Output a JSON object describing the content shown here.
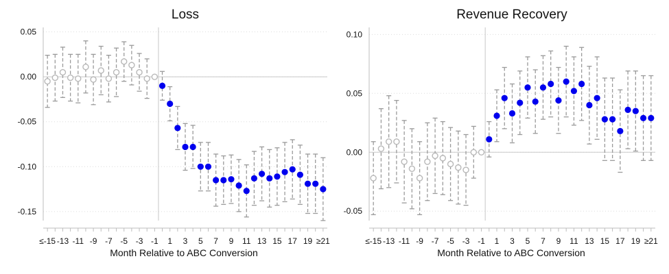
{
  "chart_data": [
    {
      "type": "scatter",
      "title": "Loss",
      "xlabel": "Month Relative to ABC Conversion",
      "ylabel": "",
      "ylim": [
        -0.16,
        0.055
      ],
      "yticks": [
        0.05,
        0.0,
        -0.05,
        -0.1,
        -0.15
      ],
      "ytick_labels": [
        "0.05",
        "0.00",
        "-0.05",
        "-0.10",
        "-0.15"
      ],
      "xticks": [
        -15,
        -13,
        -11,
        -9,
        -7,
        -5,
        -3,
        -1,
        1,
        3,
        5,
        7,
        9,
        11,
        13,
        15,
        17,
        19,
        21
      ],
      "xtick_labels": [
        "≤-15",
        "-13",
        "-11",
        "-9",
        "-7",
        "-5",
        "-3",
        "-1",
        "1",
        "3",
        "5",
        "7",
        "9",
        "11",
        "13",
        "15",
        "17",
        "19",
        "≥21"
      ],
      "grid": true,
      "reference_x": -0.5,
      "reference_y": 0,
      "series": [
        {
          "role": "pre",
          "marker": "hollow",
          "color": "#b8b8b8",
          "x": [
            -15,
            -14,
            -13,
            -12,
            -11,
            -10,
            -9,
            -8,
            -7,
            -6,
            -5,
            -4,
            -3,
            -2,
            -1
          ],
          "y": [
            -0.005,
            -0.001,
            0.005,
            -0.001,
            -0.002,
            0.011,
            -0.003,
            0.007,
            -0.002,
            0.005,
            0.017,
            0.013,
            0.005,
            -0.002,
            0.0
          ],
          "ci": [
            0.029,
            0.026,
            0.028,
            0.026,
            0.027,
            0.029,
            0.028,
            0.027,
            0.026,
            0.027,
            0.022,
            0.022,
            0.021,
            0.022,
            0.0
          ]
        },
        {
          "role": "post",
          "marker": "filled",
          "color": "#0000ee",
          "x": [
            0,
            1,
            2,
            3,
            4,
            5,
            6,
            7,
            8,
            9,
            10,
            11,
            12,
            13,
            14,
            15,
            16,
            17,
            18,
            19,
            20,
            21
          ],
          "y": [
            -0.01,
            -0.03,
            -0.057,
            -0.078,
            -0.078,
            -0.1,
            -0.1,
            -0.115,
            -0.115,
            -0.114,
            -0.121,
            -0.127,
            -0.113,
            -0.108,
            -0.113,
            -0.111,
            -0.106,
            -0.103,
            -0.109,
            -0.119,
            -0.119,
            -0.125
          ],
          "ci": [
            0.016,
            0.019,
            0.024,
            0.026,
            0.024,
            0.027,
            0.027,
            0.029,
            0.027,
            0.027,
            0.029,
            0.029,
            0.03,
            0.03,
            0.032,
            0.032,
            0.033,
            0.033,
            0.033,
            0.033,
            0.033,
            0.035
          ]
        }
      ]
    },
    {
      "type": "scatter",
      "title": "Revenue Recovery",
      "xlabel": "Month Relative to ABC Conversion",
      "ylabel": "",
      "ylim": [
        -0.058,
        0.106
      ],
      "yticks": [
        0.1,
        0.05,
        0.0,
        -0.05
      ],
      "ytick_labels": [
        "0.10",
        "0.05",
        "0.00",
        "-0.05"
      ],
      "xticks": [
        -15,
        -13,
        -11,
        -9,
        -7,
        -5,
        -3,
        -1,
        1,
        3,
        5,
        7,
        9,
        11,
        13,
        15,
        17,
        19,
        21
      ],
      "xtick_labels": [
        "≤-15",
        "-13",
        "-11",
        "-9",
        "-7",
        "-5",
        "-3",
        "-1",
        "1",
        "3",
        "5",
        "7",
        "9",
        "11",
        "13",
        "15",
        "17",
        "19",
        "≥21"
      ],
      "grid": true,
      "reference_x": -0.5,
      "reference_y": 0,
      "series": [
        {
          "role": "pre",
          "marker": "hollow",
          "color": "#b8b8b8",
          "x": [
            -15,
            -14,
            -13,
            -12,
            -11,
            -10,
            -9,
            -8,
            -7,
            -6,
            -5,
            -4,
            -3,
            -2,
            -1
          ],
          "y": [
            -0.022,
            0.003,
            0.009,
            0.009,
            -0.008,
            -0.014,
            -0.022,
            -0.008,
            -0.003,
            -0.005,
            -0.01,
            -0.013,
            -0.015,
            0.0,
            0.0
          ],
          "ci": [
            0.031,
            0.034,
            0.039,
            0.035,
            0.035,
            0.034,
            0.031,
            0.033,
            0.032,
            0.031,
            0.031,
            0.031,
            0.03,
            0.022,
            0.0
          ]
        },
        {
          "role": "post",
          "marker": "filled",
          "color": "#0000ee",
          "x": [
            0,
            1,
            2,
            3,
            4,
            5,
            6,
            7,
            8,
            9,
            10,
            11,
            12,
            13,
            14,
            15,
            16,
            17,
            18,
            19,
            20,
            21
          ],
          "y": [
            0.011,
            0.031,
            0.046,
            0.033,
            0.042,
            0.055,
            0.043,
            0.055,
            0.058,
            0.044,
            0.06,
            0.052,
            0.058,
            0.04,
            0.046,
            0.028,
            0.028,
            0.018,
            0.036,
            0.035,
            0.029,
            0.029
          ],
          "ci": [
            0.015,
            0.022,
            0.026,
            0.025,
            0.027,
            0.026,
            0.027,
            0.027,
            0.028,
            0.028,
            0.03,
            0.029,
            0.031,
            0.033,
            0.035,
            0.035,
            0.035,
            0.035,
            0.033,
            0.034,
            0.036,
            0.036
          ]
        }
      ]
    }
  ]
}
